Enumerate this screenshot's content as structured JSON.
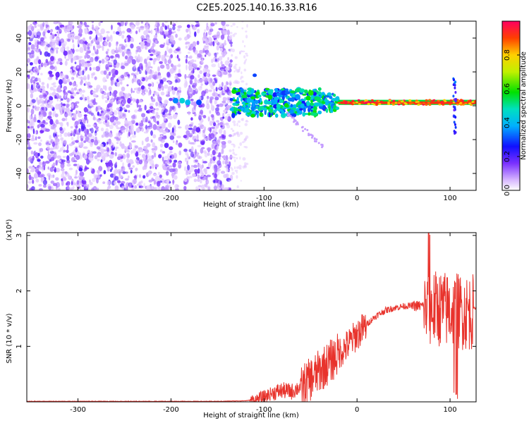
{
  "chart_data": [
    {
      "type": "heatmap",
      "title": "C2E5.2025.140.16.33.R16",
      "xlabel": "Height of straight line (km)",
      "ylabel": "Frequency (Hz)",
      "xlim": [
        -355,
        128
      ],
      "ylim": [
        -50,
        50
      ],
      "x_ticks": [
        "-300",
        "-200",
        "-100",
        "0",
        "100"
      ],
      "y_ticks": [
        "-40",
        "-20",
        "0",
        "20",
        "40"
      ],
      "colorbar": {
        "label": "Normalized spectral amplitude",
        "range": [
          0,
          1
        ],
        "ticks": [
          "0.0",
          "0.2",
          "0.4",
          "0.6",
          "0.8"
        ]
      },
      "regions": [
        {
          "x_range": [
            -355,
            -135
          ],
          "description": "noise"
        },
        {
          "x_range": [
            -135,
            -20
          ],
          "freq_center": 2,
          "amplitude": "0.3-0.6"
        },
        {
          "x_range": [
            -20,
            128
          ],
          "freq_center": 2,
          "amplitude": "0.8-1.0"
        }
      ]
    },
    {
      "type": "line",
      "title": "",
      "xlabel": "Height of straight line (km)",
      "ylabel": "SNR (10 * v/v)",
      "scale_label": "(x10⁴)",
      "xlim": [
        -355,
        128
      ],
      "ylim": [
        0,
        3.05
      ],
      "x_ticks": [
        "-300",
        "-200",
        "-100",
        "0",
        "100"
      ],
      "y_ticks": [
        "1",
        "2",
        "3"
      ],
      "series": [
        {
          "name": "SNR",
          "color": "#e8332c",
          "points": [
            [
              -355,
              0.01
            ],
            [
              -300,
              0.01
            ],
            [
              -200,
              0.01
            ],
            [
              -150,
              0.01
            ],
            [
              -120,
              0.02
            ],
            [
              -110,
              0.04
            ],
            [
              -100,
              0.1
            ],
            [
              -90,
              0.18
            ],
            [
              -80,
              0.22
            ],
            [
              -70,
              0.2
            ],
            [
              -60,
              0.3
            ],
            [
              -50,
              0.45
            ],
            [
              -40,
              0.6
            ],
            [
              -30,
              0.75
            ],
            [
              -20,
              0.9
            ],
            [
              -10,
              1.05
            ],
            [
              0,
              1.25
            ],
            [
              10,
              1.4
            ],
            [
              20,
              1.55
            ],
            [
              30,
              1.65
            ],
            [
              40,
              1.7
            ],
            [
              50,
              1.73
            ],
            [
              60,
              1.74
            ],
            [
              70,
              1.74
            ],
            [
              80,
              1.75
            ],
            [
              90,
              1.75
            ],
            [
              100,
              1.72
            ],
            [
              110,
              1.7
            ],
            [
              120,
              1.69
            ],
            [
              128,
              1.69
            ]
          ]
        }
      ]
    }
  ]
}
